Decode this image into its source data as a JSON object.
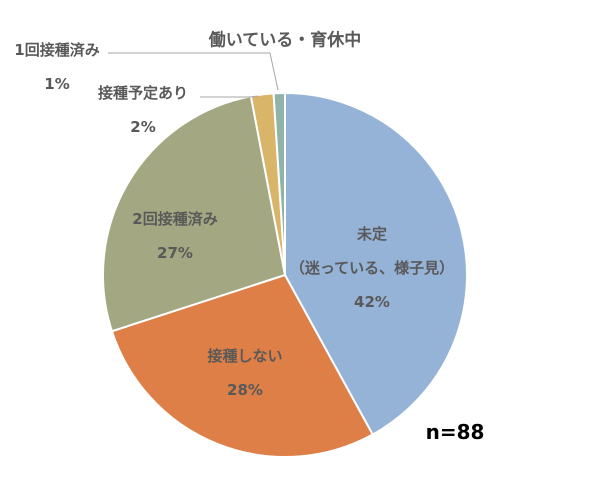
{
  "chart_data": {
    "type": "pie",
    "title": "働いている・育休中",
    "categories": [
      "未定\n（迷っている、様子見）",
      "接種しない",
      "2回接種済み",
      "接種予定あり",
      "1回接種済み"
    ],
    "values": [
      42,
      28,
      27,
      2,
      1
    ],
    "value_labels": [
      "42%",
      "28%",
      "27%",
      "2%",
      "1%"
    ],
    "colors": [
      "#95b3d7",
      "#dd7f47",
      "#a3a882",
      "#d9b56a",
      "#8fb3a8"
    ],
    "annotation": "n=88"
  }
}
